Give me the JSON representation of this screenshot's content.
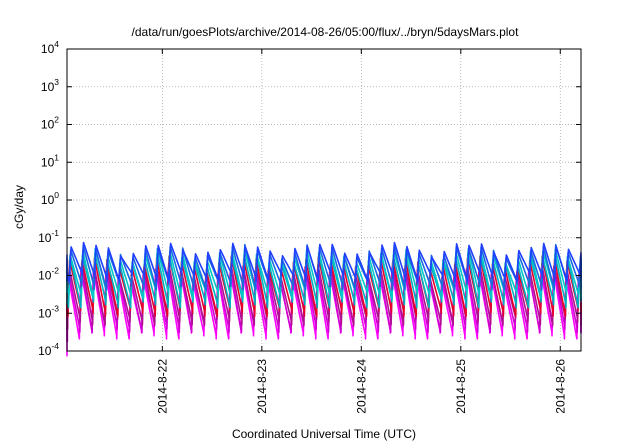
{
  "chart_data": {
    "type": "line",
    "title": "/data/run/goesPlots/archive/2014-08-26/05:00/flux/../bryn/5daysMars.plot",
    "xlabel": "Coordinated Universal Time (UTC)",
    "ylabel": "cGy/day",
    "yscale": "log",
    "ylim": [
      0.0001,
      10000
    ],
    "xlim": [
      "2014-08-21 01:00",
      "2014-08-26 05:00"
    ],
    "x_tick_labels": [
      "2014-8-22",
      "2014-8-23",
      "2014-8-24",
      "2014-8-25",
      "2014-8-26"
    ],
    "y_ticks": [
      {
        "base": "10",
        "exp": "-4",
        "value": 0.0001
      },
      {
        "base": "10",
        "exp": "-3",
        "value": 0.001
      },
      {
        "base": "10",
        "exp": "-2",
        "value": 0.01
      },
      {
        "base": "10",
        "exp": "-1",
        "value": 0.1
      },
      {
        "base": "10",
        "exp": "0",
        "value": 1
      },
      {
        "base": "10",
        "exp": "1",
        "value": 10
      },
      {
        "base": "10",
        "exp": "2",
        "value": 100
      },
      {
        "base": "10",
        "exp": "3",
        "value": 1000
      },
      {
        "base": "10",
        "exp": "4",
        "value": 10000
      }
    ],
    "grid": true,
    "pattern": {
      "period_hours": 3,
      "description": "sawtooth: sharp rise then decay each period",
      "series_peak_trough": [
        {
          "color": "#ff00ff",
          "peak": 0.011,
          "trough": 0.0003
        },
        {
          "color": "#d000d0",
          "peak": 0.013,
          "trough": 0.00045
        },
        {
          "color": "#b01090",
          "peak": 0.016,
          "trough": 0.0007
        },
        {
          "color": "#e8002a",
          "peak": 0.024,
          "trough": 0.0012
        },
        {
          "color": "#00b0c0",
          "peak": 0.03,
          "trough": 0.002
        },
        {
          "color": "#00c8c8",
          "peak": 0.038,
          "trough": 0.0035
        },
        {
          "color": "#1a6adf",
          "peak": 0.048,
          "trough": 0.006
        },
        {
          "color": "#2040ff",
          "peak": 0.055,
          "trough": 0.01
        }
      ]
    }
  }
}
